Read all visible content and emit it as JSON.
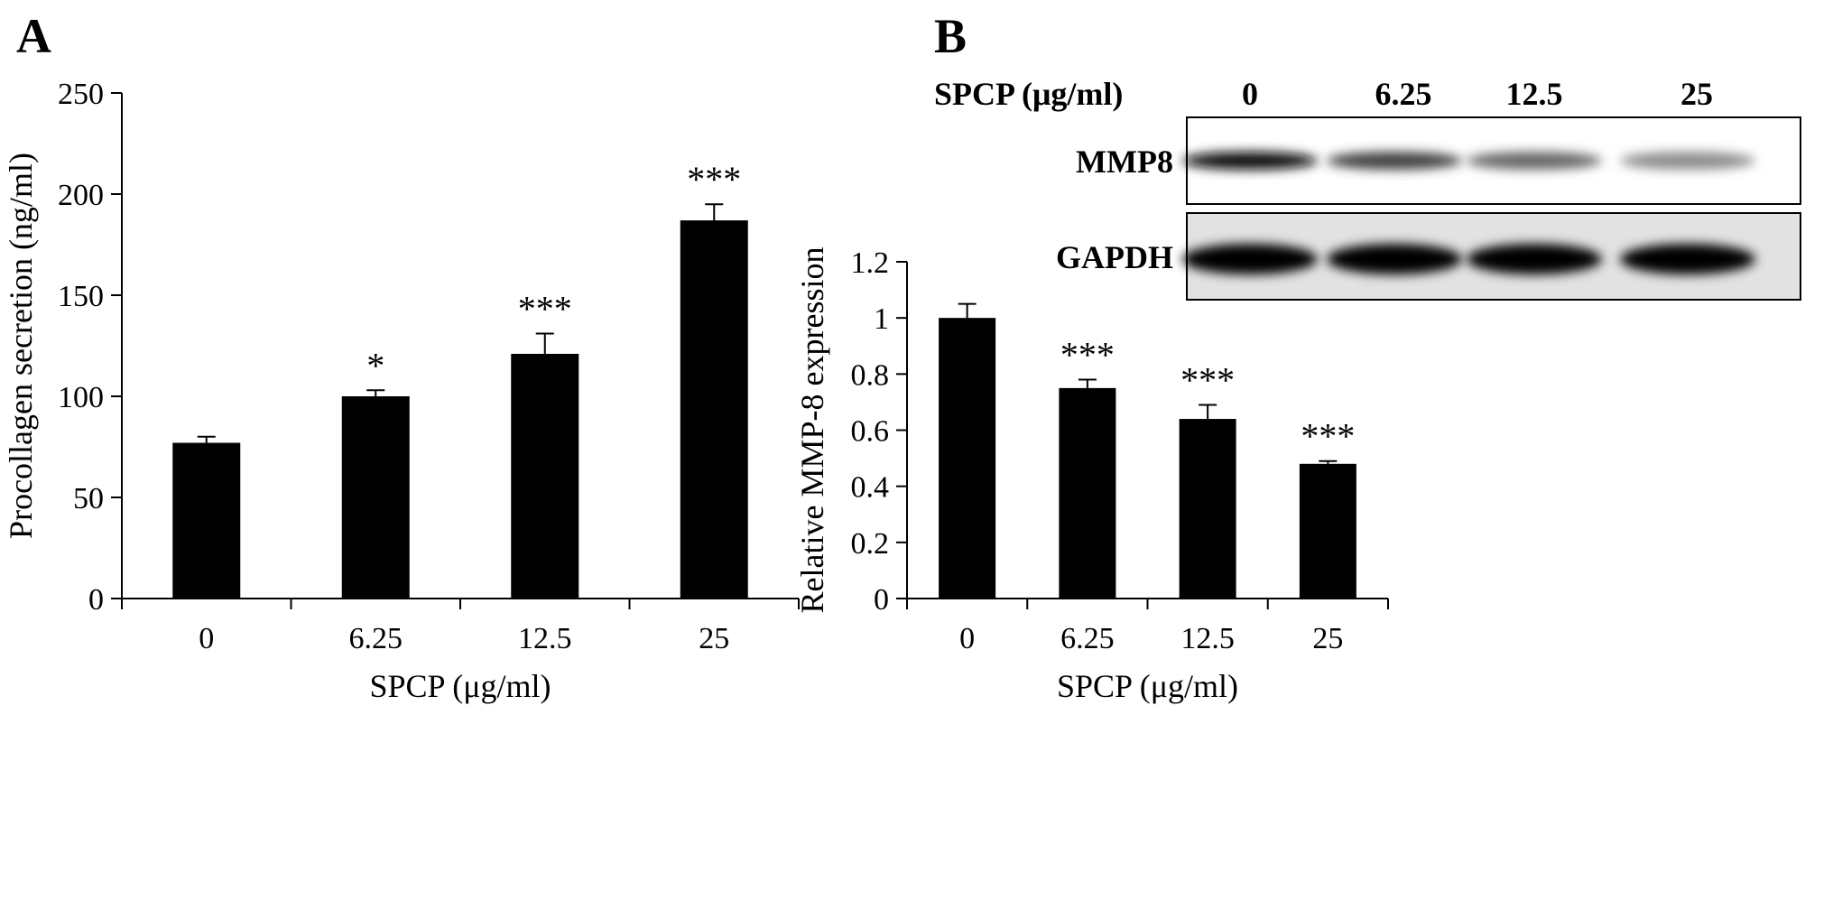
{
  "panel_a_letter": "A",
  "panel_b_letter": "B",
  "blot": {
    "header_label": "SPCP (μg/ml)",
    "lanes": [
      "0",
      "6.25",
      "12.5",
      "25"
    ],
    "rows": [
      {
        "label": "MMP8",
        "intensity": [
          0.95,
          0.75,
          0.6,
          0.45
        ]
      },
      {
        "label": "GAPDH",
        "intensity": [
          1.0,
          1.0,
          1.0,
          1.0
        ]
      }
    ]
  },
  "chart_data": [
    {
      "type": "bar",
      "title": "",
      "categories": [
        "0",
        "6.25",
        "12.5",
        "25"
      ],
      "values": [
        77,
        100,
        121,
        187
      ],
      "errors": [
        3,
        3,
        10,
        8
      ],
      "significance": [
        "",
        "*",
        "***",
        "***"
      ],
      "xlabel": "SPCP (μg/ml)",
      "ylabel": "Procollagen secretion (ng/ml)",
      "ylim": [
        0,
        250
      ],
      "yticks": [
        0,
        50,
        100,
        150,
        200,
        250
      ],
      "bar_color": "#000000",
      "grid": false
    },
    {
      "type": "bar",
      "title": "",
      "categories": [
        "0",
        "6.25",
        "12.5",
        "25"
      ],
      "values": [
        1.0,
        0.75,
        0.64,
        0.48
      ],
      "errors": [
        0.05,
        0.03,
        0.05,
        0.01
      ],
      "significance": [
        "",
        "***",
        "***",
        "***"
      ],
      "xlabel": "SPCP (μg/ml)",
      "ylabel": "Relative MMP-8 expression",
      "ylim": [
        0,
        1.2
      ],
      "yticks": [
        0,
        0.2,
        0.4,
        0.6,
        0.8,
        1,
        1.2
      ],
      "bar_color": "#000000",
      "grid": false
    }
  ]
}
